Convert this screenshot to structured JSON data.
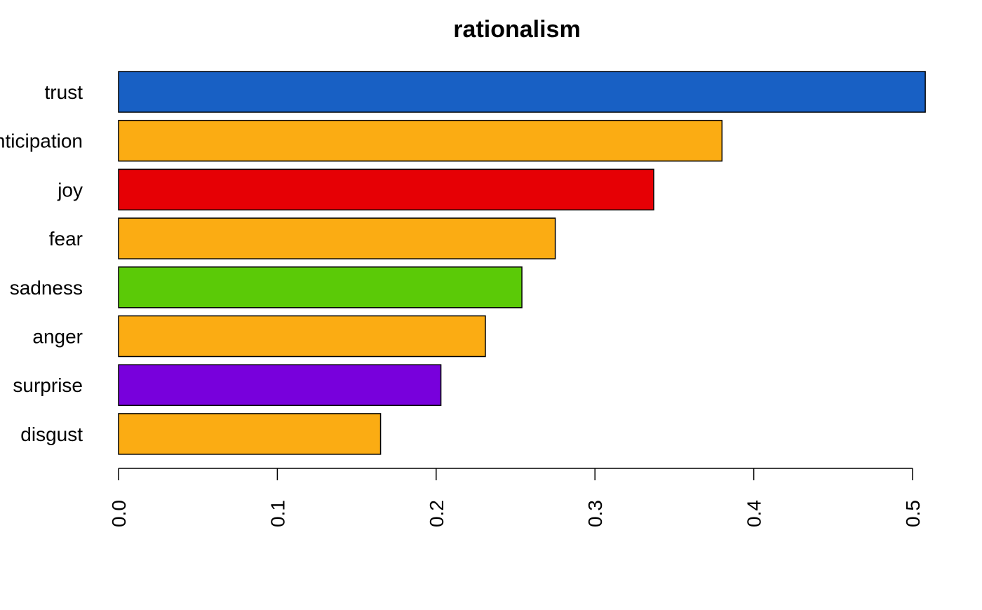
{
  "chart_data": {
    "type": "bar",
    "orientation": "horizontal",
    "title": "rationalism",
    "xlabel": "",
    "ylabel": "",
    "categories": [
      "trust",
      "anticipation",
      "joy",
      "fear",
      "sadness",
      "anger",
      "surprise",
      "disgust"
    ],
    "values": [
      0.508,
      0.38,
      0.337,
      0.275,
      0.254,
      0.231,
      0.203,
      0.165
    ],
    "colors": [
      "#1860C4",
      "#FBAC13",
      "#E60005",
      "#FBAC13",
      "#5BCA07",
      "#FBAC13",
      "#7800DC",
      "#FBAC13"
    ],
    "xlim": [
      0,
      0.5
    ],
    "xticks": [
      0.0,
      0.1,
      0.2,
      0.3,
      0.4,
      0.5
    ],
    "xtick_labels": [
      "0.0",
      "0.1",
      "0.2",
      "0.3",
      "0.4",
      "0.5"
    ],
    "grid": false,
    "legend": "none"
  }
}
